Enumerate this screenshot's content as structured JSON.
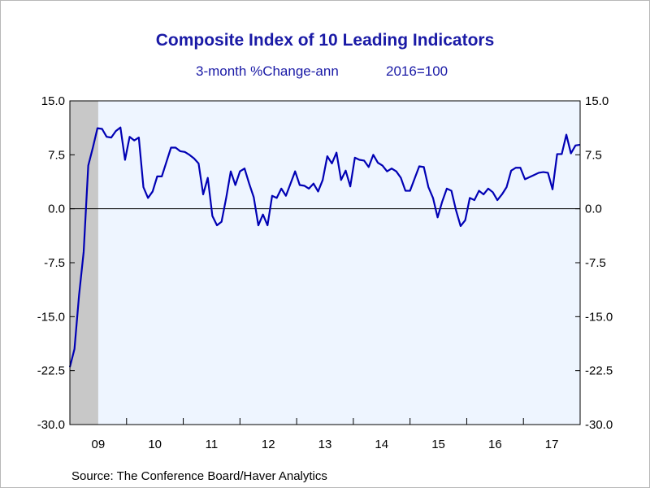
{
  "chart_data": {
    "type": "line",
    "title": "Composite Index of 10 Leading Indicators",
    "subtitle_left": "3-month %Change-ann",
    "subtitle_right": "2016=100",
    "source": "Source:  The Conference Board/Haver Analytics",
    "ylim": [
      -30.0,
      15.0
    ],
    "yticks": [
      "15.0",
      "7.5",
      "0.0",
      "-7.5",
      "-15.0",
      "-22.5",
      "-30.0"
    ],
    "xtick_labels": [
      "09",
      "10",
      "11",
      "12",
      "13",
      "14",
      "15",
      "16",
      "17"
    ],
    "x_start": "2009-01",
    "x_end": "2017-12",
    "recession_shading": {
      "start": "2009-01",
      "end": "2009-06"
    },
    "zero_line": true,
    "grid": false,
    "colors": {
      "line": "#0000b4",
      "plot_bg": "#eef5ff",
      "recession": "#c8c8c8",
      "title": "#1a1aa6"
    },
    "series": [
      {
        "values": [
          -22,
          -19.5,
          -12,
          -6,
          6,
          8.5,
          11.2,
          11.1,
          10,
          9.9,
          10.8,
          11.3,
          6.8,
          10,
          9.5,
          9.9,
          3,
          1.5,
          2.4,
          4.5,
          4.5,
          6.5,
          8.5,
          8.5,
          8,
          7.9,
          7.5,
          7,
          6.3,
          2,
          4.3,
          -1,
          -2.3,
          -1.8,
          1.5,
          5.2,
          3.3,
          5.2,
          5.6,
          3.5,
          1.6,
          -2.3,
          -0.8,
          -2.3,
          1.8,
          1.5,
          2.8,
          1.8,
          3.5,
          5.2,
          3.3,
          3.2,
          2.8,
          3.5,
          2.4,
          4,
          7.3,
          6.3,
          7.8,
          4,
          5.3,
          3.1,
          7.1,
          6.8,
          6.7,
          5.8,
          7.5,
          6.4,
          6,
          5.2,
          5.6,
          5.2,
          4.3,
          2.5,
          2.5,
          4.2,
          5.9,
          5.8,
          3,
          1.5,
          -1.2,
          1,
          2.8,
          2.5,
          -0.2,
          -2.4,
          -1.6,
          1.5,
          1.2,
          2.5,
          2,
          2.8,
          2.3,
          1.2,
          2,
          3,
          5.3,
          5.7,
          5.7,
          4.1,
          4.4,
          4.7,
          5,
          5.1,
          5,
          2.7,
          7.6,
          7.6,
          10.3,
          7.7,
          8.8,
          8.9
        ]
      }
    ]
  }
}
